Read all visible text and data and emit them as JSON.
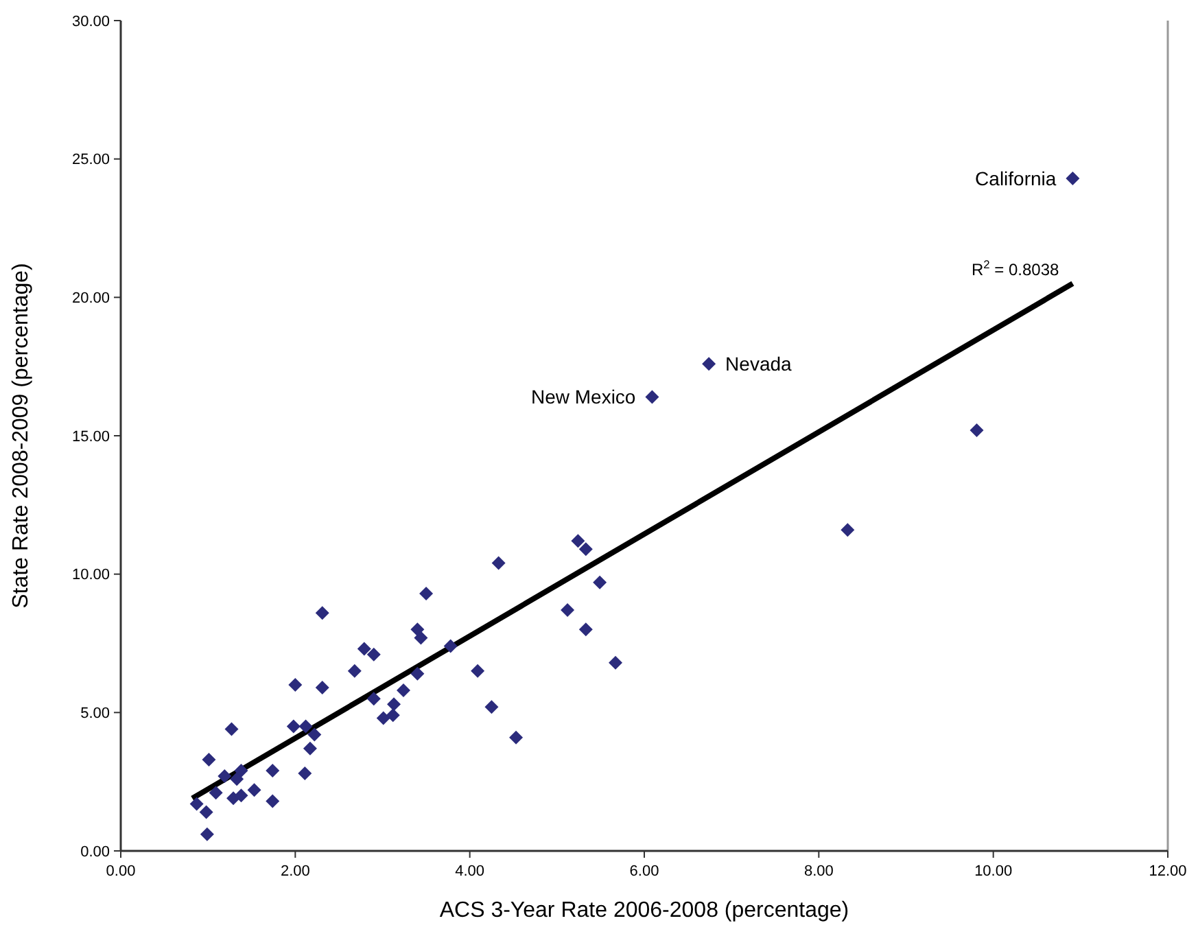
{
  "chart_data": {
    "type": "scatter",
    "xlabel": "ACS 3-Year Rate 2006-2008 (percentage)",
    "ylabel": "State Rate 2008-2009 (percentage)",
    "xlim": [
      0,
      12
    ],
    "ylim": [
      0,
      30
    ],
    "xticks": [
      {
        "value": 0,
        "label": "0.00"
      },
      {
        "value": 2,
        "label": "2.00"
      },
      {
        "value": 4,
        "label": "4.00"
      },
      {
        "value": 6,
        "label": "6.00"
      },
      {
        "value": 8,
        "label": "8.00"
      },
      {
        "value": 10,
        "label": "10.00"
      },
      {
        "value": 12,
        "label": "12.00"
      }
    ],
    "yticks": [
      {
        "value": 0,
        "label": "0.00"
      },
      {
        "value": 5,
        "label": "5.00"
      },
      {
        "value": 10,
        "label": "10.00"
      },
      {
        "value": 15,
        "label": "15.00"
      },
      {
        "value": 20,
        "label": "20.00"
      },
      {
        "value": 25,
        "label": "25.00"
      },
      {
        "value": 30,
        "label": "30.00"
      }
    ],
    "grid": false,
    "series": [
      {
        "marker": "diamond",
        "color": "#2b2b7c",
        "x": [
          0.87,
          0.98,
          0.99,
          1.01,
          1.09,
          1.19,
          1.27,
          1.29,
          1.33,
          1.38,
          1.38,
          1.53,
          1.74,
          1.74,
          2.0,
          1.98,
          2.12,
          2.11,
          2.17,
          2.22,
          2.31,
          2.31,
          2.68,
          2.79,
          2.9,
          2.9,
          3.01,
          3.13,
          3.12,
          3.24,
          3.4,
          3.4,
          3.44,
          3.5,
          3.78,
          4.09,
          4.25,
          4.33,
          4.53,
          5.12,
          5.24,
          5.33,
          5.33,
          5.49,
          5.67,
          6.09,
          6.74,
          8.33,
          9.81,
          10.91
        ],
        "values": [
          1.7,
          1.4,
          0.6,
          3.3,
          2.1,
          2.7,
          4.4,
          1.9,
          2.6,
          2.9,
          2.0,
          2.2,
          2.9,
          1.8,
          6.0,
          4.5,
          4.5,
          2.8,
          3.7,
          4.2,
          8.6,
          5.9,
          6.5,
          7.3,
          7.1,
          5.5,
          4.8,
          5.3,
          4.9,
          5.8,
          6.4,
          8.0,
          7.7,
          9.3,
          7.4,
          6.5,
          5.2,
          10.4,
          4.1,
          8.7,
          11.2,
          10.9,
          8.0,
          9.7,
          6.8,
          16.4,
          17.6,
          11.6,
          15.2,
          24.3
        ]
      },
      {
        "type": "line",
        "marker": "none",
        "color": "#000000",
        "x": [
          0.82,
          10.91
        ],
        "values": [
          1.9,
          20.5
        ]
      }
    ],
    "annotations": [
      {
        "text": "California",
        "x": 10.91,
        "y": 24.3
      },
      {
        "text": "Nevada",
        "x": 6.74,
        "y": 17.6
      },
      {
        "text": "New Mexico",
        "x": 6.09,
        "y": 16.4
      },
      {
        "text": "R$^{2}$ = 0.8038",
        "x": 10.91,
        "y": 20.5
      }
    ]
  }
}
